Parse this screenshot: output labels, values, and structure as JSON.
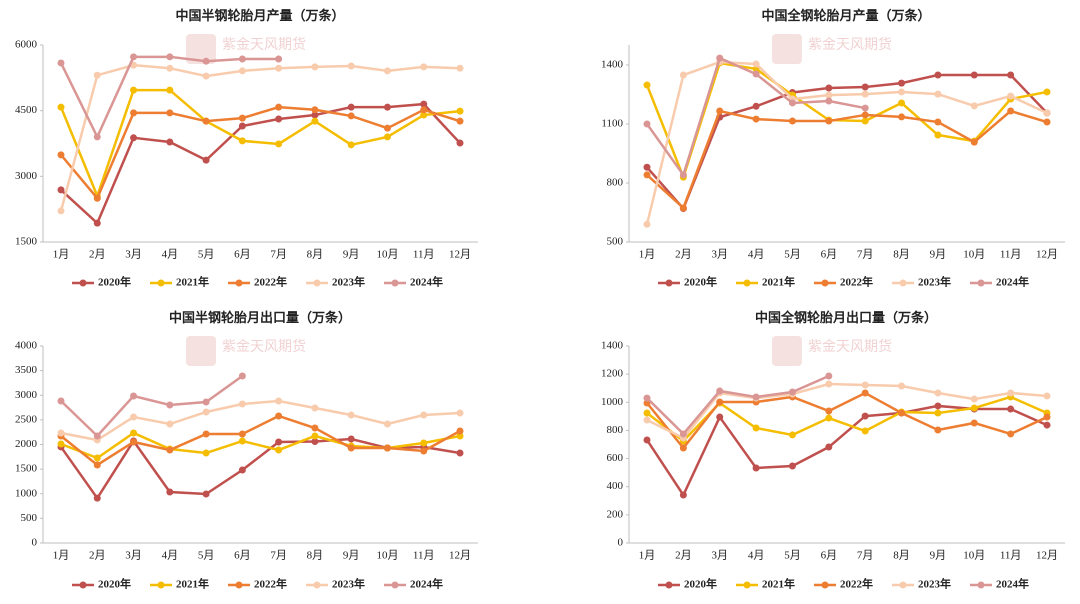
{
  "watermark": "紫金天风期货",
  "chart_data": [
    {
      "type": "line",
      "title": "中国半钢轮胎月产量（万条）",
      "categories": [
        "1月",
        "2月",
        "3月",
        "4月",
        "5月",
        "6月",
        "7月",
        "8月",
        "9月",
        "10月",
        "11月",
        "12月"
      ],
      "ylim": [
        1500,
        6000
      ],
      "yticks": [
        1500,
        3000,
        4500,
        6000
      ],
      "legend": "bottom",
      "series": [
        {
          "name": "2020年",
          "color": "#c0504d",
          "values": [
            2690,
            1930,
            3880,
            3785,
            3370,
            4150,
            4310,
            4400,
            4580,
            4580,
            4650,
            3760
          ]
        },
        {
          "name": "2021年",
          "color": "#f5bd00",
          "values": [
            4580,
            2550,
            4970,
            4970,
            4260,
            3810,
            3740,
            4260,
            3720,
            3900,
            4400,
            4490
          ]
        },
        {
          "name": "2022年",
          "color": "#ed7d31",
          "values": [
            3490,
            2500,
            4450,
            4450,
            4260,
            4330,
            4580,
            4520,
            4380,
            4100,
            4520,
            4260
          ]
        },
        {
          "name": "2023年",
          "color": "#f8cbad",
          "values": [
            2210,
            5310,
            5540,
            5470,
            5290,
            5410,
            5470,
            5500,
            5520,
            5410,
            5500,
            5470
          ]
        },
        {
          "name": "2024年",
          "color": "#d99694",
          "values": [
            5590,
            3900,
            5730,
            5730,
            5630,
            5680,
            5680,
            null,
            null,
            null,
            null,
            null
          ]
        }
      ]
    },
    {
      "type": "line",
      "title": "中国全钢轮胎月产量（万条）",
      "categories": [
        "1月",
        "2月",
        "3月",
        "4月",
        "5月",
        "6月",
        "7月",
        "8月",
        "9月",
        "10月",
        "11月",
        "12月"
      ],
      "ylim": [
        500,
        1400
      ],
      "yticks": [
        500,
        800,
        1100,
        1400
      ],
      "legend": "bottom",
      "series": [
        {
          "name": "2020年",
          "color": "#c0504d",
          "values": [
            880,
            670,
            1135,
            1190,
            1260,
            1283,
            1288,
            1308,
            1349,
            1349,
            1349,
            1156
          ]
        },
        {
          "name": "2021年",
          "color": "#f5bd00",
          "values": [
            1298,
            830,
            1410,
            1380,
            1247,
            1120,
            1115,
            1207,
            1044,
            1013,
            1227,
            1263
          ]
        },
        {
          "name": "2022年",
          "color": "#ed7d31",
          "values": [
            841,
            673,
            1166,
            1125,
            1115,
            1115,
            1146,
            1136,
            1110,
            1008,
            1166,
            1110
          ]
        },
        {
          "name": "2023年",
          "color": "#f8cbad",
          "values": [
            590,
            1349,
            1415,
            1405,
            1227,
            1247,
            1252,
            1263,
            1252,
            1192,
            1242,
            1156
          ]
        },
        {
          "name": "2024年",
          "color": "#d99694",
          "values": [
            1100,
            841,
            1435,
            1354,
            1207,
            1217,
            1181,
            null,
            null,
            null,
            null,
            null
          ]
        }
      ]
    },
    {
      "type": "line",
      "title": "中国半钢轮胎月出口量（万条）",
      "categories": [
        "1月",
        "2月",
        "3月",
        "4月",
        "5月",
        "6月",
        "7月",
        "8月",
        "9月",
        "10月",
        "11月",
        "12月"
      ],
      "ylim": [
        0,
        4000
      ],
      "yticks": [
        0,
        500,
        1000,
        1500,
        2000,
        2500,
        3000,
        3500,
        4000
      ],
      "legend": "bottom",
      "series": [
        {
          "name": "2020年",
          "color": "#c0504d",
          "values": [
            1950,
            910,
            2071,
            1036,
            995,
            1482,
            2051,
            2060,
            2112,
            1929,
            1950,
            1827
          ]
        },
        {
          "name": "2021年",
          "color": "#f5bd00",
          "values": [
            2010,
            1726,
            2234,
            1909,
            1827,
            2071,
            1888,
            2173,
            1970,
            1929,
            2030,
            2173
          ]
        },
        {
          "name": "2022年",
          "color": "#ed7d31",
          "values": [
            2173,
            1584,
            2051,
            1888,
            2213,
            2213,
            2579,
            2335,
            1929,
            1929,
            1868,
            2274
          ]
        },
        {
          "name": "2023年",
          "color": "#f8cbad",
          "values": [
            2234,
            2091,
            2558,
            2416,
            2660,
            2822,
            2883,
            2741,
            2599,
            2416,
            2599,
            2640
          ]
        },
        {
          "name": "2024年",
          "color": "#d99694",
          "values": [
            2883,
            2173,
            2985,
            2802,
            2863,
            3391,
            null,
            null,
            null,
            null,
            null,
            null
          ]
        }
      ]
    },
    {
      "type": "line",
      "title": "中国全钢轮胎月出口量（万条）",
      "categories": [
        "1月",
        "2月",
        "3月",
        "4月",
        "5月",
        "6月",
        "7月",
        "8月",
        "9月",
        "10月",
        "11月",
        "12月"
      ],
      "ylim": [
        0,
        1400
      ],
      "yticks": [
        0,
        200,
        400,
        600,
        800,
        1000,
        1200,
        1400
      ],
      "legend": "bottom",
      "series": [
        {
          "name": "2020年",
          "color": "#c0504d",
          "values": [
            732,
            341,
            895,
            533,
            547,
            682,
            902,
            924,
            974,
            952,
            952,
            838
          ]
        },
        {
          "name": "2021年",
          "color": "#f5bd00",
          "values": [
            924,
            725,
            995,
            817,
            768,
            888,
            796,
            931,
            924,
            959,
            1038,
            924
          ]
        },
        {
          "name": "2022年",
          "color": "#ed7d31",
          "values": [
            995,
            675,
            1002,
            1002,
            1038,
            938,
            1066,
            924,
            803,
            853,
            775,
            895
          ]
        },
        {
          "name": "2023年",
          "color": "#f8cbad",
          "values": [
            874,
            746,
            1066,
            1030,
            1059,
            1130,
            1123,
            1116,
            1066,
            1023,
            1066,
            1045
          ]
        },
        {
          "name": "2024年",
          "color": "#d99694",
          "values": [
            1030,
            775,
            1080,
            1038,
            1073,
            1187,
            null,
            null,
            null,
            null,
            null,
            null
          ]
        }
      ]
    }
  ]
}
